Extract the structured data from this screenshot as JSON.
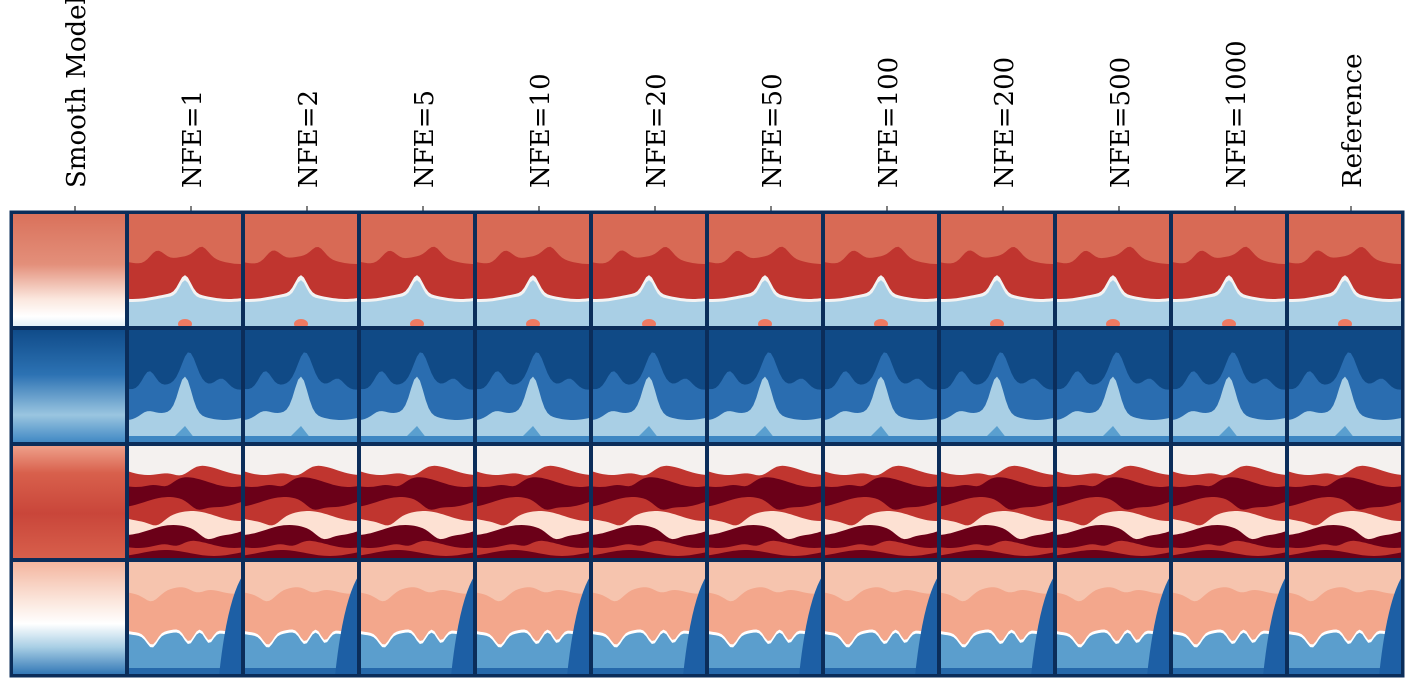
{
  "columns": [
    {
      "label": "Smooth Model"
    },
    {
      "label": "NFE=1"
    },
    {
      "label": "NFE=2"
    },
    {
      "label": "NFE=5"
    },
    {
      "label": "NFE=10"
    },
    {
      "label": "NFE=20"
    },
    {
      "label": "NFE=50"
    },
    {
      "label": "NFE=100"
    },
    {
      "label": "NFE=200"
    },
    {
      "label": "NFE=500"
    },
    {
      "label": "NFE=1000"
    },
    {
      "label": "Reference"
    }
  ],
  "rows": [
    {
      "palette": [
        "#d86a55",
        "#c0352f",
        "#f3f3f3",
        "#a9cfe5",
        "#ef7a62"
      ],
      "kind": "red-top"
    },
    {
      "palette": [
        "#104a86",
        "#2a6db0",
        "#a9cfe5",
        "#5a9fcf",
        "#3d86c2"
      ],
      "kind": "blue"
    },
    {
      "palette": [
        "#f4f1ef",
        "#c0352f",
        "#6b0018",
        "#fde1d3",
        "#f8d6c8"
      ],
      "kind": "stripes"
    },
    {
      "palette": [
        "#f3a78c",
        "#f6c4ae",
        "#5b9ecd",
        "#1d5fa5",
        "#ffffff"
      ],
      "kind": "salmon"
    }
  ],
  "colors": {
    "frame": "#0b2d5a",
    "label": "#000000"
  }
}
